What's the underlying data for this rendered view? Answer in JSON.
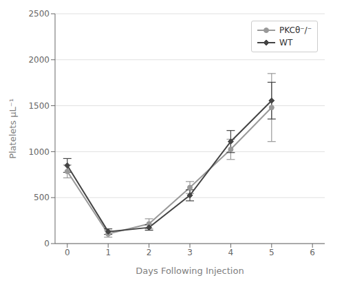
{
  "chart_data": {
    "type": "line",
    "x": [
      0,
      1,
      2,
      3,
      4,
      5
    ],
    "series": [
      {
        "name": "PKCθ⁻/⁻",
        "color": "#999999",
        "marker": "circle",
        "values": [
          785,
          105,
          215,
          610,
          1025,
          1480
        ],
        "yerr": [
          70,
          35,
          55,
          65,
          110,
          370
        ]
      },
      {
        "name": "WT",
        "color": "#444444",
        "marker": "diamond",
        "values": [
          850,
          130,
          175,
          525,
          1110,
          1555
        ],
        "yerr": [
          75,
          30,
          30,
          60,
          120,
          200
        ]
      }
    ],
    "xlabel": "Days Following Injection",
    "ylabel": "Platelets μL⁻¹",
    "xlim": [
      -0.3,
      6.3
    ],
    "ylim": [
      0,
      2500
    ],
    "xticks": [
      0,
      1,
      2,
      3,
      4,
      5,
      6
    ],
    "yticks": [
      0,
      500,
      1000,
      1500,
      2000,
      2500
    ],
    "grid": "y",
    "legend": "upper right"
  }
}
